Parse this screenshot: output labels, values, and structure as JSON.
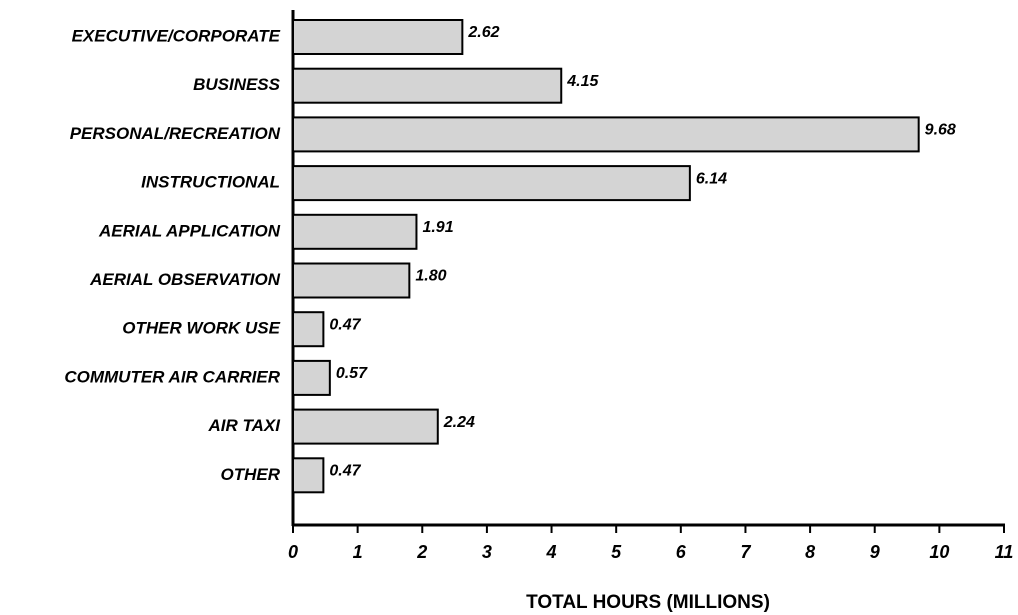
{
  "chart_data": {
    "type": "hbar",
    "x_label": "TOTAL HOURS (MILLIONS)",
    "categories": [
      "EXECUTIVE/CORPORATE",
      "BUSINESS",
      "PERSONAL/RECREATION",
      "INSTRUCTIONAL",
      "AERIAL APPLICATION",
      "AERIAL OBSERVATION",
      "OTHER WORK USE",
      "COMMUTER AIR CARRIER",
      "AIR TAXI",
      "OTHER"
    ],
    "values": [
      2.62,
      4.15,
      9.68,
      6.14,
      1.91,
      1.8,
      0.47,
      0.57,
      2.24,
      0.47
    ],
    "value_labels": [
      "2.62",
      "4.15",
      "9.68",
      "6.14",
      "1.91",
      "1.80",
      "0.47",
      "0.57",
      "2.24",
      "0.47"
    ],
    "color": "#d4d4d4",
    "xlim": [
      0,
      11
    ],
    "xticks": [
      0,
      1,
      2,
      3,
      4,
      5,
      6,
      7,
      8,
      9,
      10,
      11
    ],
    "grid": false
  }
}
